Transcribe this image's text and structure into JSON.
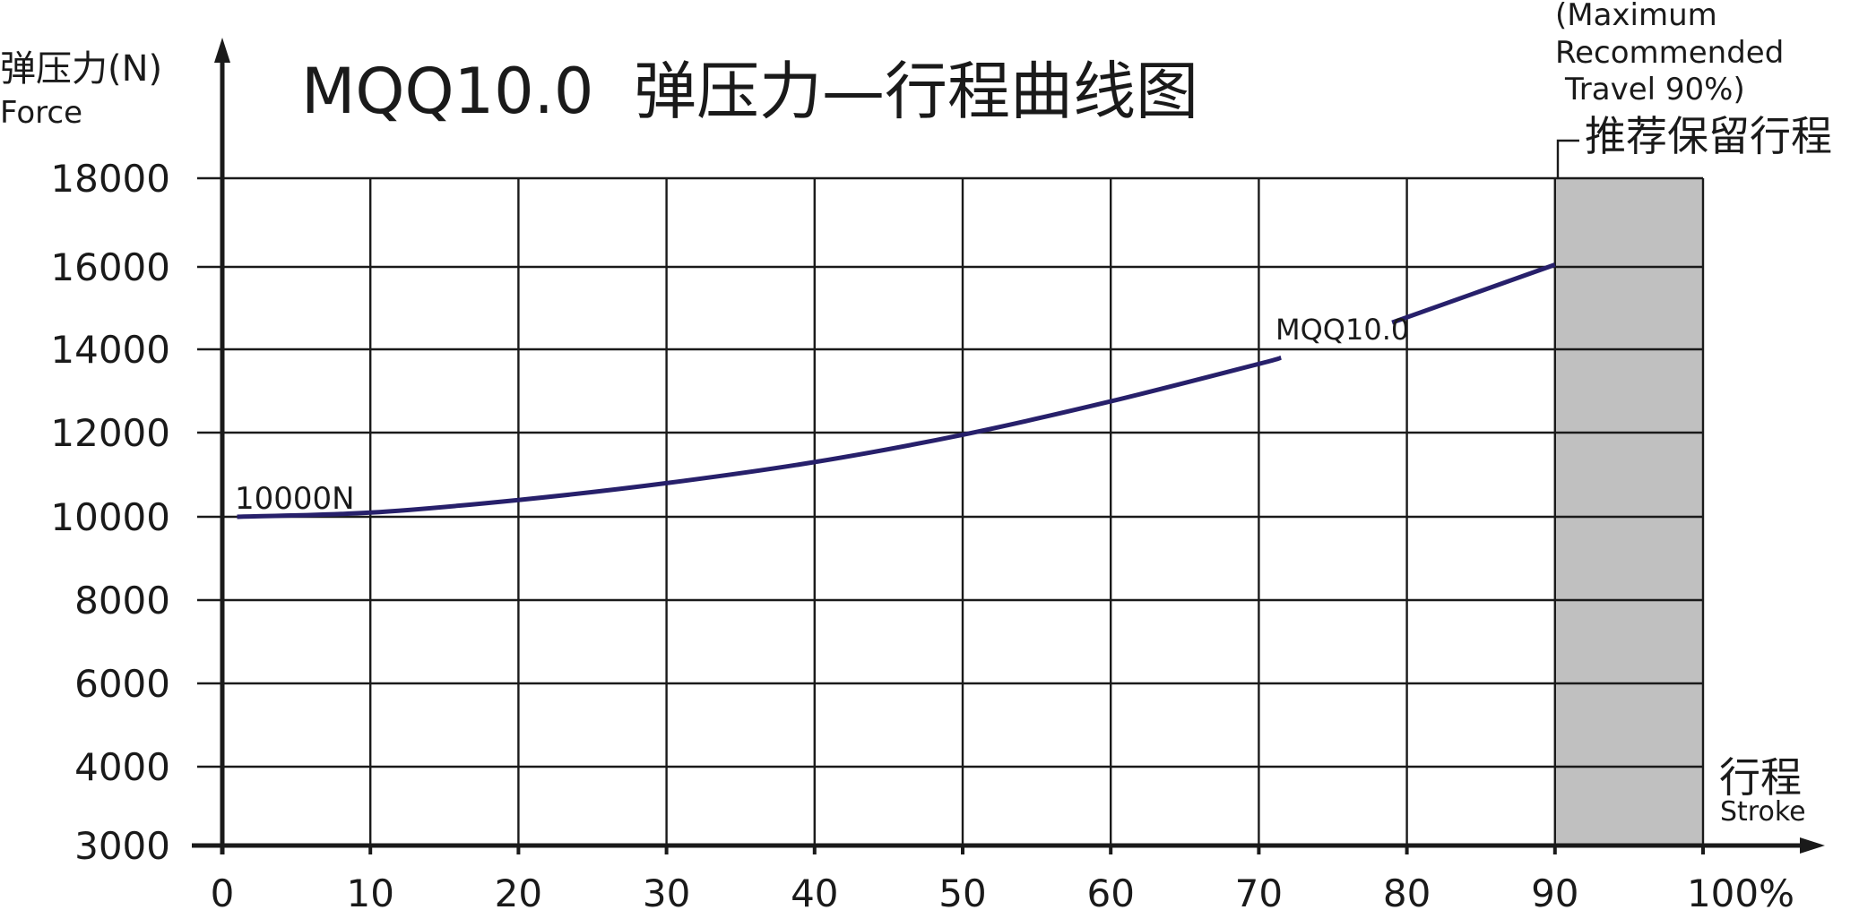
{
  "chart_data": {
    "type": "line",
    "title": "MQQ10.0  弹压力—行程曲线图",
    "ylabel": "弹压力(N)",
    "ylabel_en": "Force",
    "xlabel": "行程",
    "xlabel_en": "Stroke",
    "x_ticks": [
      "0",
      "10",
      "20",
      "30",
      "40",
      "50",
      "60",
      "70",
      "80",
      "90",
      "100%"
    ],
    "y_ticks": [
      "3000",
      "4000",
      "6000",
      "8000",
      "10000",
      "12000",
      "14000",
      "16000",
      "18000"
    ],
    "xlim": [
      0,
      100
    ],
    "ylim": [
      3000,
      18000
    ],
    "grid": true,
    "series": [
      {
        "name": "MQQ10.0",
        "x": [
          1,
          10,
          20,
          30,
          40,
          50,
          60,
          70,
          71.5,
          79,
          90
        ],
        "y": [
          10000,
          10100,
          10400,
          10800,
          11300,
          11950,
          12750,
          13650,
          13800,
          14650,
          16050
        ]
      }
    ],
    "label_gap_x": [
      71.5,
      79
    ],
    "annotations": {
      "start_value": "10000N",
      "series_label": "MQQ10.0",
      "shaded_region": {
        "x_from": 90,
        "x_to": 100,
        "color": "#c0c0c0"
      },
      "reserve_note_cn": "推荐保留行程",
      "reserve_note_en": [
        "(Maximum",
        "Recommended",
        "Travel 90%)"
      ]
    }
  },
  "colors": {
    "curve": "#27206b",
    "shade": "#c0c0c0",
    "ink": "#1a1a1a"
  }
}
